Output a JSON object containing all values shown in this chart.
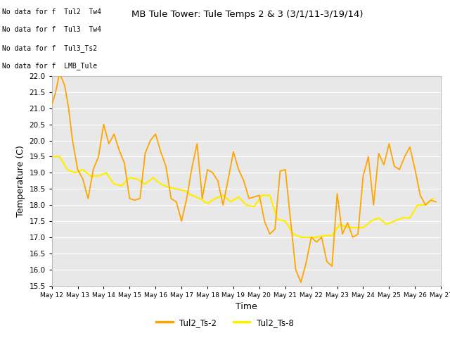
{
  "title": "MB Tule Tower: Tule Temps 2 & 3 (3/1/11-3/19/14)",
  "xlabel": "Time",
  "ylabel": "Temperature (C)",
  "ylim": [
    15.5,
    22.0
  ],
  "yticks": [
    15.5,
    16.0,
    16.5,
    17.0,
    17.5,
    18.0,
    18.5,
    19.0,
    19.5,
    20.0,
    20.5,
    21.0,
    21.5,
    22.0
  ],
  "bg_color": "#e8e8e8",
  "line1_color": "#FFA500",
  "line2_color": "#FFEE00",
  "line1_label": "Tul2_Ts-2",
  "line2_label": "Tul2_Ts-8",
  "no_data_texts": [
    "No data for f  Tul2  Tw4",
    "No data for f  Tul3  Tw4",
    "No data for f  Tul3_Ts2",
    "No data for f  LMB_Tule"
  ],
  "x_start": 12,
  "x_end": 27,
  "x_ticks": [
    12,
    13,
    14,
    15,
    16,
    17,
    18,
    19,
    20,
    21,
    22,
    23,
    24,
    25,
    26,
    27
  ],
  "x_tick_labels": [
    "May 12",
    "May 13",
    "May 14",
    "May 15",
    "May 16",
    "May 17",
    "May 18",
    "May 19",
    "May 20",
    "May 21",
    "May 22",
    "May 23",
    "May 24",
    "May 25",
    "May 26",
    "May 27"
  ],
  "series1_x": [
    12.0,
    12.15,
    12.3,
    12.5,
    12.65,
    12.8,
    13.0,
    13.2,
    13.4,
    13.6,
    13.8,
    14.0,
    14.2,
    14.4,
    14.6,
    14.8,
    15.0,
    15.2,
    15.4,
    15.6,
    15.8,
    16.0,
    16.2,
    16.4,
    16.6,
    16.8,
    17.0,
    17.2,
    17.4,
    17.6,
    17.8,
    18.0,
    18.2,
    18.4,
    18.6,
    18.8,
    19.0,
    19.2,
    19.4,
    19.6,
    19.8,
    20.0,
    20.2,
    20.4,
    20.6,
    20.8,
    21.0,
    21.2,
    21.4,
    21.6,
    21.8,
    22.0,
    22.2,
    22.4,
    22.6,
    22.8,
    23.0,
    23.2,
    23.4,
    23.6,
    23.8,
    24.0,
    24.2,
    24.4,
    24.6,
    24.8,
    25.0,
    25.2,
    25.4,
    25.6,
    25.8,
    26.0,
    26.2,
    26.4,
    26.6,
    26.8
  ],
  "series1_y": [
    21.1,
    21.5,
    22.1,
    21.7,
    21.0,
    20.0,
    19.1,
    18.8,
    18.2,
    19.1,
    19.5,
    20.5,
    19.9,
    20.2,
    19.7,
    19.3,
    18.2,
    18.15,
    18.2,
    19.6,
    20.0,
    20.2,
    19.65,
    19.2,
    18.2,
    18.1,
    17.5,
    18.2,
    19.15,
    19.9,
    18.2,
    19.1,
    19.0,
    18.75,
    18.0,
    18.8,
    19.65,
    19.1,
    18.75,
    18.2,
    18.25,
    18.3,
    17.5,
    17.1,
    17.25,
    19.05,
    19.1,
    17.55,
    16.0,
    15.6,
    16.2,
    17.0,
    16.85,
    17.0,
    16.25,
    16.1,
    18.35,
    17.1,
    17.45,
    17.0,
    17.1,
    18.9,
    19.5,
    18.0,
    19.6,
    19.25,
    19.9,
    19.2,
    19.1,
    19.5,
    19.8,
    19.1,
    18.3,
    18.0,
    18.15,
    18.1
  ],
  "series2_x": [
    12.0,
    12.3,
    12.6,
    12.9,
    13.2,
    13.5,
    13.8,
    14.1,
    14.4,
    14.7,
    15.0,
    15.3,
    15.6,
    15.9,
    16.2,
    16.5,
    16.8,
    17.1,
    17.4,
    17.7,
    18.0,
    18.3,
    18.6,
    18.9,
    19.2,
    19.5,
    19.8,
    20.1,
    20.4,
    20.7,
    21.0,
    21.3,
    21.6,
    21.9,
    22.2,
    22.5,
    22.8,
    23.1,
    23.4,
    23.7,
    24.0,
    24.3,
    24.6,
    24.9,
    25.2,
    25.5,
    25.8,
    26.1,
    26.4,
    26.7
  ],
  "series2_y": [
    19.5,
    19.5,
    19.1,
    19.0,
    19.1,
    18.9,
    18.9,
    19.0,
    18.65,
    18.6,
    18.85,
    18.8,
    18.65,
    18.85,
    18.65,
    18.55,
    18.5,
    18.45,
    18.3,
    18.2,
    18.05,
    18.2,
    18.3,
    18.1,
    18.25,
    18.0,
    17.95,
    18.3,
    18.3,
    17.55,
    17.5,
    17.1,
    17.0,
    17.0,
    17.0,
    17.05,
    17.05,
    17.4,
    17.3,
    17.3,
    17.3,
    17.5,
    17.6,
    17.4,
    17.5,
    17.6,
    17.6,
    18.0,
    18.0,
    18.2
  ]
}
